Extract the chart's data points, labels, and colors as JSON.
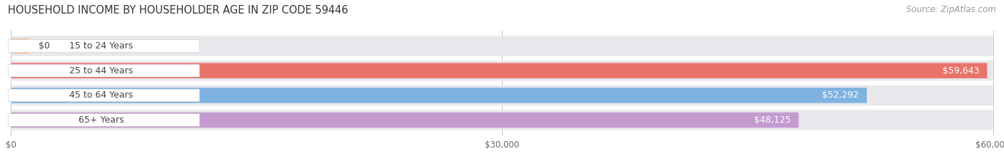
{
  "title": "HOUSEHOLD INCOME BY HOUSEHOLDER AGE IN ZIP CODE 59446",
  "source": "Source: ZipAtlas.com",
  "categories": [
    "15 to 24 Years",
    "25 to 44 Years",
    "45 to 64 Years",
    "65+ Years"
  ],
  "values": [
    0,
    59643,
    52292,
    48125
  ],
  "bar_colors": [
    "#f5c49a",
    "#e8736a",
    "#7eb3df",
    "#c49ad0"
  ],
  "row_bg_color": "#e8e8ec",
  "label_bg_color": "#ffffff",
  "xlim": [
    0,
    60000
  ],
  "xticks": [
    0,
    30000,
    60000
  ],
  "xtick_labels": [
    "$0",
    "$30,000",
    "$60,000"
  ],
  "value_labels": [
    "$0",
    "$59,643",
    "$52,292",
    "$48,125"
  ],
  "title_fontsize": 10.5,
  "source_fontsize": 8.5,
  "bar_label_fontsize": 9,
  "tick_fontsize": 8.5,
  "figsize": [
    14.06,
    2.33
  ],
  "dpi": 100
}
